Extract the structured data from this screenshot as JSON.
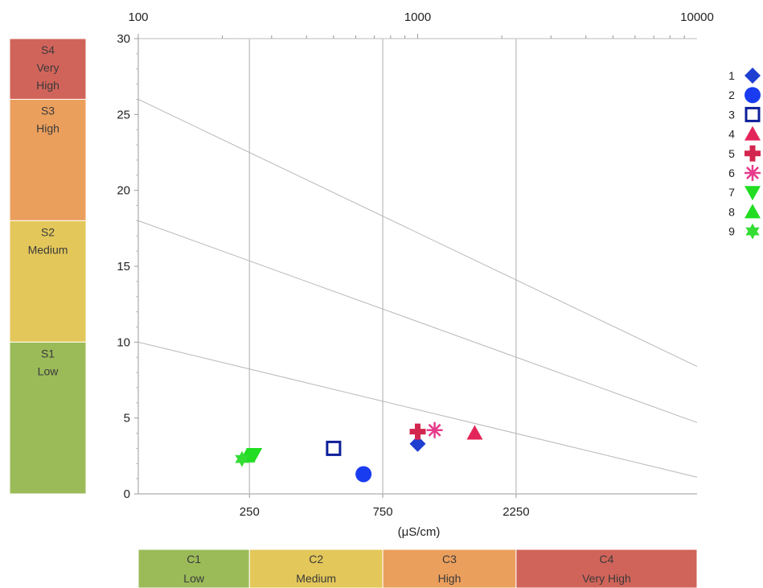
{
  "chart_data": {
    "type": "scatter",
    "title": "",
    "xlabel": "(μS/cm)",
    "ylabel": "",
    "x_scale": "log",
    "xlim": [
      100,
      10000
    ],
    "ylim": [
      0,
      30
    ],
    "x_ticks_top": [
      "100",
      "1000",
      "10000"
    ],
    "x_ticks_bottom": [
      {
        "label": "250",
        "value": 250
      },
      {
        "label": "750",
        "value": 750
      },
      {
        "label": "2250",
        "value": 2250
      }
    ],
    "y_ticks": [
      "0",
      "5",
      "10",
      "15",
      "20",
      "25",
      "30"
    ],
    "grid": "vertical lines at class boundaries",
    "legend_position": "right",
    "salinity_classes": [
      {
        "code": "C1",
        "name": "Low",
        "color": "#9bbb59"
      },
      {
        "code": "C2",
        "name": "Medium",
        "color": "#e3c75a"
      },
      {
        "code": "C3",
        "name": "High",
        "color": "#eb9f5d"
      },
      {
        "code": "C4",
        "name": "Very High",
        "color": "#d1645a"
      }
    ],
    "sodium_classes": [
      {
        "code": "S4",
        "line2": "Very",
        "line3": "High",
        "color": "#d1645a"
      },
      {
        "code": "S3",
        "line2": "High",
        "line3": "",
        "color": "#eb9f5d"
      },
      {
        "code": "S2",
        "line2": "Medium",
        "line3": "",
        "color": "#e3c75a"
      },
      {
        "code": "S1",
        "line2": "Low",
        "line3": "",
        "color": "#9bbb59"
      }
    ],
    "boundary_lines": [
      {
        "y_at_100": 10,
        "y_at_10000": 1.1
      },
      {
        "y_at_100": 18,
        "y_at_10000": 4.7
      },
      {
        "y_at_100": 26,
        "y_at_10000": 8.4
      }
    ],
    "series": [
      {
        "name": "1",
        "marker": "diamond",
        "color": "#1f3fd1",
        "x": 1000,
        "y": 3.3
      },
      {
        "name": "2",
        "marker": "circle",
        "color": "#1a3cf0",
        "x": 640,
        "y": 1.3
      },
      {
        "name": "3",
        "marker": "square-open",
        "color": "#0d1f99",
        "x": 500,
        "y": 3.0
      },
      {
        "name": "4",
        "marker": "triangle-up",
        "color": "#e3265a",
        "x": 1600,
        "y": 4.0
      },
      {
        "name": "5",
        "marker": "cross",
        "color": "#d3264f",
        "x": 1000,
        "y": 4.1
      },
      {
        "name": "6",
        "marker": "asterisk",
        "color": "#e63c8c",
        "x": 1150,
        "y": 4.2
      },
      {
        "name": "7",
        "marker": "triangle-down",
        "color": "#22dd22",
        "x": 260,
        "y": 2.6
      },
      {
        "name": "8",
        "marker": "triangle-up",
        "color": "#22dd22",
        "x": 245,
        "y": 2.5
      },
      {
        "name": "9",
        "marker": "star6",
        "color": "#33dd33",
        "x": 235,
        "y": 2.3
      }
    ]
  }
}
